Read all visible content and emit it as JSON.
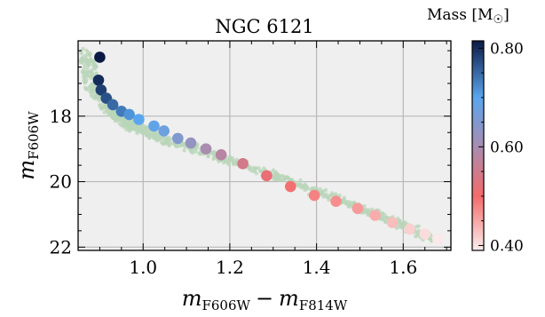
{
  "chart_data": {
    "type": "scatter",
    "title": "NGC 6121",
    "xlabel": {
      "main": "m",
      "sub1": "F606W",
      "minus": "−",
      "main2": "m",
      "sub2": "F814W"
    },
    "ylabel": {
      "main": "m",
      "sub": "F606W"
    },
    "xlim": [
      0.85,
      1.71
    ],
    "ylim": [
      22.1,
      15.7
    ],
    "y_inverted": true,
    "grid": true,
    "x_ticks": [
      1.0,
      1.2,
      1.4,
      1.6
    ],
    "x_tick_labels": [
      "1.0",
      "1.2",
      "1.4",
      "1.6"
    ],
    "y_ticks": [
      18,
      20,
      22
    ],
    "y_tick_labels": [
      "18",
      "20",
      "22"
    ],
    "background_color": "#efefef",
    "grid_color": "#b8b8b8",
    "cloud_color": "#b9d6b9",
    "colorbar": {
      "label": {
        "text": "Mass [M",
        "suffix": "]",
        "symbol": "☉"
      },
      "range": [
        0.39,
        0.815
      ],
      "ticks": [
        0.4,
        0.6,
        0.8
      ],
      "tick_labels": [
        "0.40",
        "0.60",
        "0.80"
      ],
      "colormap": [
        {
          "v": 0.39,
          "color": "#fbeeee"
        },
        {
          "v": 0.5,
          "color": "#f46a6a"
        },
        {
          "v": 0.6,
          "color": "#a98cb0"
        },
        {
          "v": 0.7,
          "color": "#5aa6ee"
        },
        {
          "v": 0.815,
          "color": "#0b1a45"
        }
      ]
    },
    "ridge": {
      "x": [
        0.87,
        0.88,
        0.9,
        0.93,
        0.96,
        1.0,
        1.06,
        1.15,
        1.28,
        1.4,
        1.5,
        1.6,
        1.68
      ],
      "y": [
        16.1,
        16.9,
        17.4,
        17.9,
        18.2,
        18.45,
        18.75,
        19.15,
        19.7,
        20.3,
        20.8,
        21.35,
        21.8
      ],
      "half_width": [
        0.3,
        0.3,
        0.25,
        0.22,
        0.2,
        0.18,
        0.16,
        0.15,
        0.14,
        0.14,
        0.13,
        0.13,
        0.12
      ]
    },
    "series": [
      {
        "x": [
          0.9,
          0.897,
          0.903,
          0.915,
          0.93,
          0.95,
          0.968,
          0.99,
          1.025,
          1.048,
          1.08,
          1.11,
          1.145,
          1.18,
          1.23,
          1.285,
          1.34,
          1.395,
          1.445,
          1.495,
          1.535,
          1.575,
          1.615,
          1.65,
          1.68
        ],
        "y": [
          16.2,
          16.9,
          17.2,
          17.45,
          17.65,
          17.85,
          17.95,
          18.1,
          18.3,
          18.45,
          18.68,
          18.82,
          19.0,
          19.18,
          19.45,
          19.82,
          20.15,
          20.42,
          20.6,
          20.82,
          21.03,
          21.25,
          21.45,
          21.6,
          21.75
        ],
        "mass": [
          0.815,
          0.8,
          0.785,
          0.77,
          0.75,
          0.735,
          0.715,
          0.7,
          0.69,
          0.675,
          0.65,
          0.625,
          0.6,
          0.58,
          0.545,
          0.515,
          0.495,
          0.48,
          0.47,
          0.46,
          0.445,
          0.43,
          0.415,
          0.405,
          0.395
        ]
      }
    ]
  }
}
